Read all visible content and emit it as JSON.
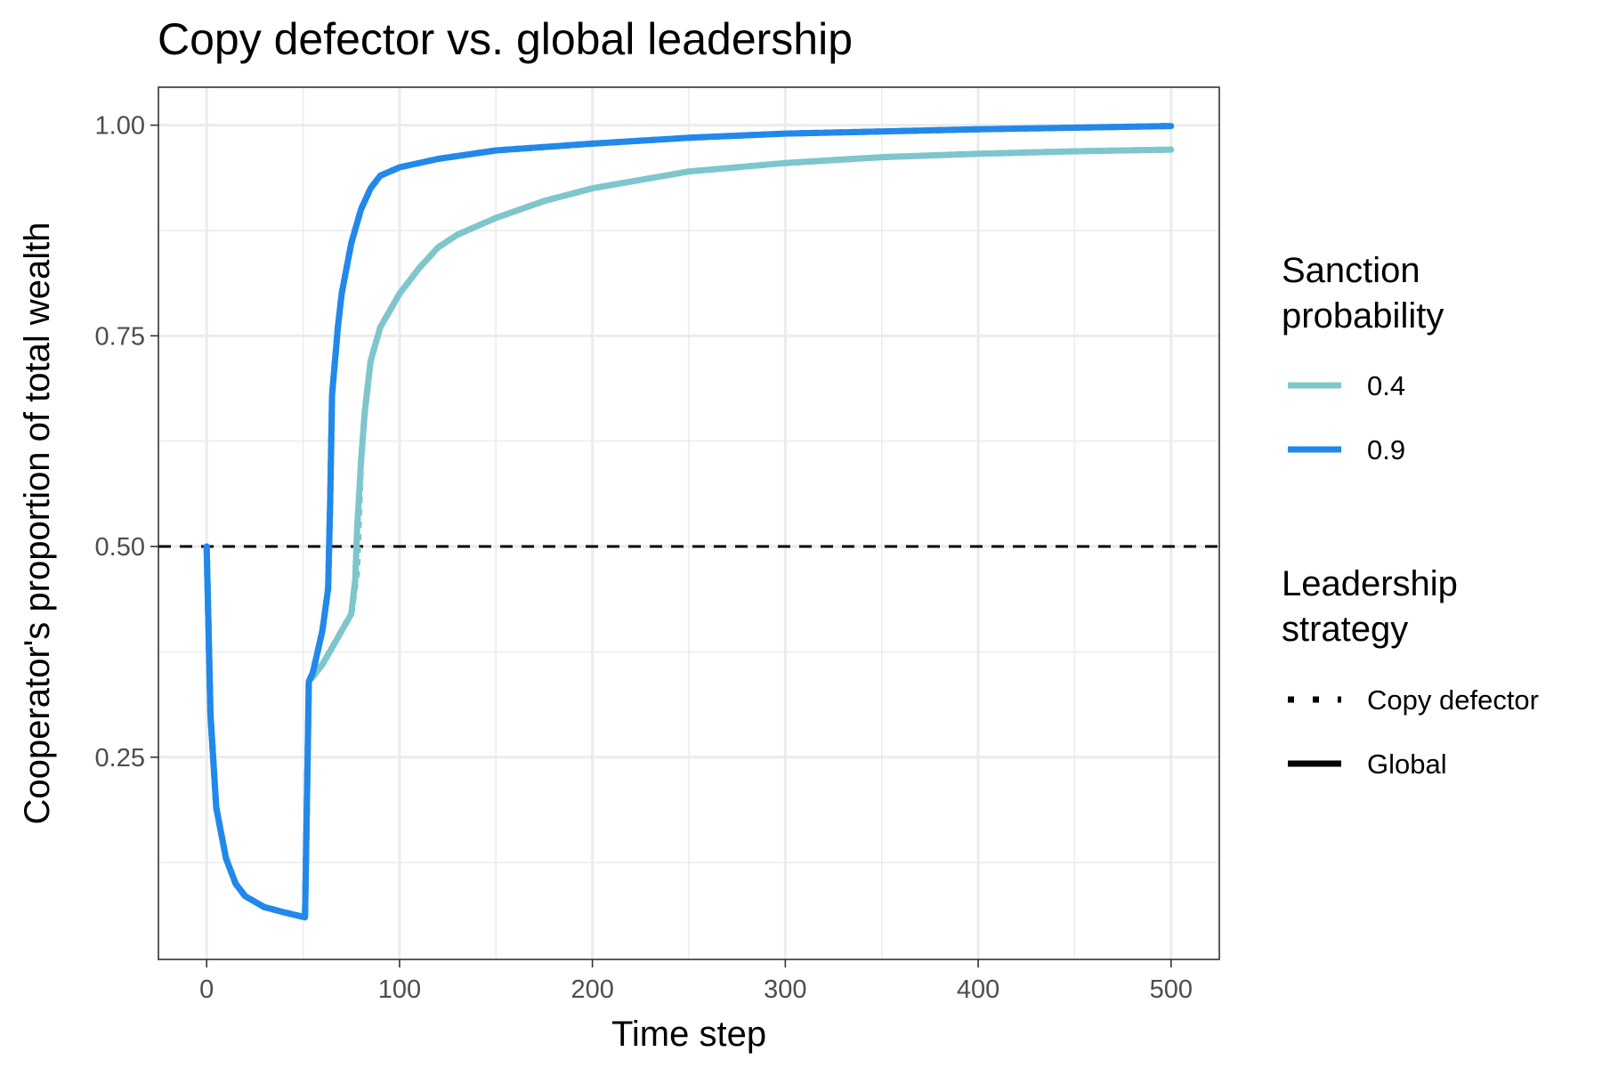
{
  "chart_data": {
    "type": "line",
    "title": "Copy defector vs. global leadership",
    "xlabel": "Time step",
    "ylabel": "Cooperator's proportion of total wealth",
    "xlim": [
      -25,
      525
    ],
    "ylim": [
      0.01,
      1.045
    ],
    "x_ticks": [
      0,
      100,
      200,
      300,
      400,
      500
    ],
    "x_tick_labels": [
      "0",
      "100",
      "200",
      "300",
      "400",
      "500"
    ],
    "y_ticks": [
      0.25,
      0.5,
      0.75,
      1.0
    ],
    "y_tick_labels": [
      "0.25",
      "0.50",
      "0.75",
      "1.00"
    ],
    "grid": true,
    "reference_line": {
      "y": 0.5,
      "style": "dashed",
      "color": "#000000"
    },
    "legends": [
      {
        "title_lines": [
          "Sanction",
          "probability"
        ],
        "entries": [
          {
            "label": "0.4",
            "color": "#7ec6cc",
            "style": "solid"
          },
          {
            "label": "0.9",
            "color": "#2288ea",
            "style": "solid"
          }
        ]
      },
      {
        "title_lines": [
          "Leadership",
          "strategy"
        ],
        "entries": [
          {
            "label": "Copy defector",
            "color": "#000000",
            "style": "dotted"
          },
          {
            "label": "Global",
            "color": "#000000",
            "style": "solid"
          }
        ]
      }
    ],
    "legend_placement": "right",
    "series": [
      {
        "sanction": "0.4",
        "strategy": "Copy defector",
        "color": "#7ec6cc",
        "style": "dotted",
        "x": [
          0,
          2,
          5,
          10,
          15,
          20,
          30,
          40,
          51,
          52,
          53,
          55,
          60,
          65,
          70,
          75,
          78,
          80,
          82,
          85,
          90,
          100,
          110,
          120,
          130,
          150,
          175,
          200,
          250,
          300,
          350,
          400,
          450,
          500
        ],
        "y": [
          0.5,
          0.3,
          0.19,
          0.13,
          0.1,
          0.085,
          0.072,
          0.066,
          0.06,
          0.2,
          0.34,
          0.345,
          0.36,
          0.38,
          0.4,
          0.42,
          0.47,
          0.6,
          0.66,
          0.72,
          0.76,
          0.8,
          0.83,
          0.855,
          0.87,
          0.89,
          0.91,
          0.925,
          0.945,
          0.955,
          0.962,
          0.966,
          0.969,
          0.971
        ]
      },
      {
        "sanction": "0.9",
        "strategy": "Copy defector",
        "color": "#2288ea",
        "style": "dotted",
        "x": [
          0,
          2,
          5,
          10,
          15,
          20,
          30,
          40,
          51,
          52,
          53,
          55,
          58,
          60,
          63,
          64,
          65,
          68,
          70,
          75,
          80,
          85,
          90,
          100,
          120,
          150,
          200,
          250,
          300,
          400,
          500
        ],
        "y": [
          0.5,
          0.3,
          0.19,
          0.13,
          0.1,
          0.085,
          0.072,
          0.066,
          0.06,
          0.2,
          0.34,
          0.35,
          0.38,
          0.4,
          0.45,
          0.55,
          0.68,
          0.76,
          0.8,
          0.86,
          0.9,
          0.925,
          0.94,
          0.95,
          0.96,
          0.97,
          0.978,
          0.985,
          0.99,
          0.995,
          0.999
        ]
      },
      {
        "sanction": "0.4",
        "strategy": "Global",
        "color": "#7ec6cc",
        "style": "solid",
        "x": [
          0,
          2,
          5,
          10,
          15,
          20,
          30,
          40,
          51,
          52,
          53,
          55,
          60,
          65,
          70,
          75,
          77,
          78,
          80,
          82,
          85,
          90,
          100,
          110,
          120,
          130,
          150,
          175,
          200,
          250,
          300,
          350,
          400,
          450,
          500
        ],
        "y": [
          0.5,
          0.3,
          0.19,
          0.13,
          0.1,
          0.085,
          0.072,
          0.066,
          0.06,
          0.2,
          0.34,
          0.345,
          0.36,
          0.38,
          0.4,
          0.42,
          0.46,
          0.52,
          0.6,
          0.66,
          0.72,
          0.76,
          0.8,
          0.83,
          0.855,
          0.87,
          0.89,
          0.91,
          0.925,
          0.945,
          0.955,
          0.962,
          0.966,
          0.969,
          0.971
        ]
      },
      {
        "sanction": "0.9",
        "strategy": "Global",
        "color": "#2288ea",
        "style": "solid",
        "x": [
          0,
          2,
          5,
          10,
          15,
          20,
          30,
          40,
          51,
          52,
          53,
          55,
          58,
          60,
          63,
          64,
          65,
          68,
          70,
          75,
          80,
          85,
          90,
          100,
          120,
          150,
          200,
          250,
          300,
          400,
          500
        ],
        "y": [
          0.5,
          0.3,
          0.19,
          0.13,
          0.1,
          0.085,
          0.072,
          0.066,
          0.06,
          0.2,
          0.34,
          0.35,
          0.38,
          0.4,
          0.45,
          0.55,
          0.68,
          0.76,
          0.8,
          0.86,
          0.9,
          0.925,
          0.94,
          0.95,
          0.96,
          0.97,
          0.978,
          0.985,
          0.99,
          0.995,
          0.999
        ]
      }
    ]
  }
}
